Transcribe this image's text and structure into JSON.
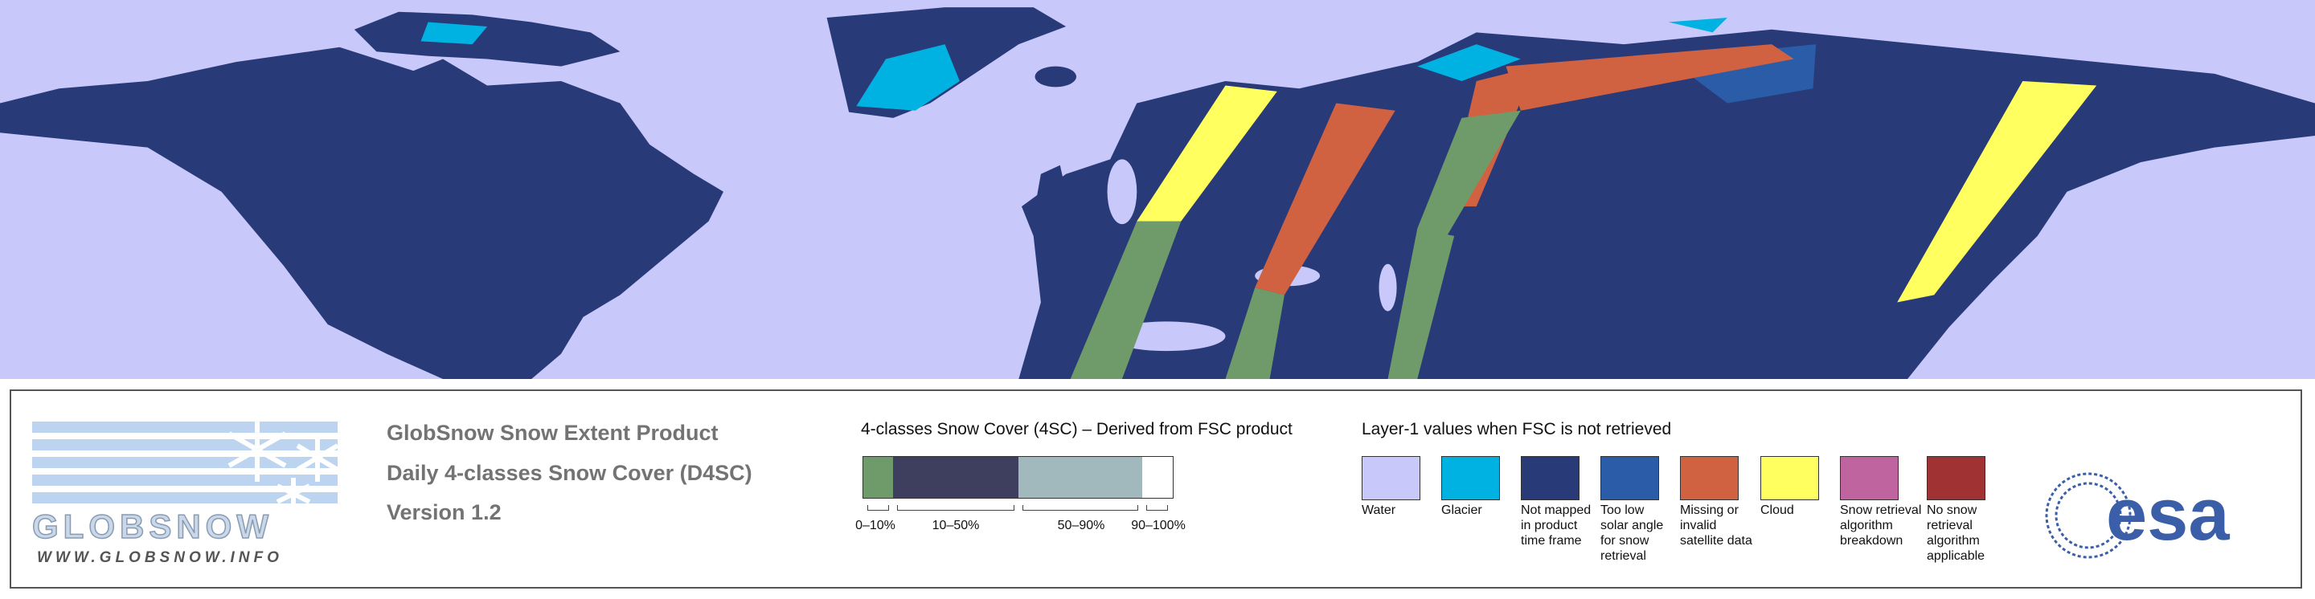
{
  "logo": {
    "name": "GLOBSNOW",
    "url": "WWW.GLOBSNOW.INFO"
  },
  "header": {
    "title": "GlobSnow Snow Extent Product",
    "subtitle": "Daily 4-classes Snow Cover (D4SC)",
    "version": "Version 1.2"
  },
  "snow_cover_legend": {
    "title": "4-classes Snow Cover (4SC) – Derived from FSC product",
    "classes": [
      {
        "label": "0–10%",
        "color": "#6f9a6a"
      },
      {
        "label": "10–50%",
        "color": "#3e3f5f"
      },
      {
        "label": "50–90%",
        "color": "#a1b9bd"
      },
      {
        "label": "90–100%",
        "color": "#ffffff"
      }
    ]
  },
  "layer1_legend": {
    "title": "Layer-1 values when FSC is not retrieved",
    "items": [
      {
        "label": "Water",
        "color": "#c8c8fa"
      },
      {
        "label": "Glacier",
        "color": "#00b2e2"
      },
      {
        "label": "Not mapped in product time frame",
        "color": "#283a78"
      },
      {
        "label": "Too low solar angle for snow retrieval",
        "color": "#2a5ca8"
      },
      {
        "label": "Missing or invalid satellite data",
        "color": "#d06242"
      },
      {
        "label": "Cloud",
        "color": "#ffff60"
      },
      {
        "label": "Snow retrieval algorithm breakdown",
        "color": "#c064a0"
      },
      {
        "label": "No snow retrieval algorithm applicable",
        "color": "#a03234"
      }
    ]
  },
  "agency": "esa"
}
